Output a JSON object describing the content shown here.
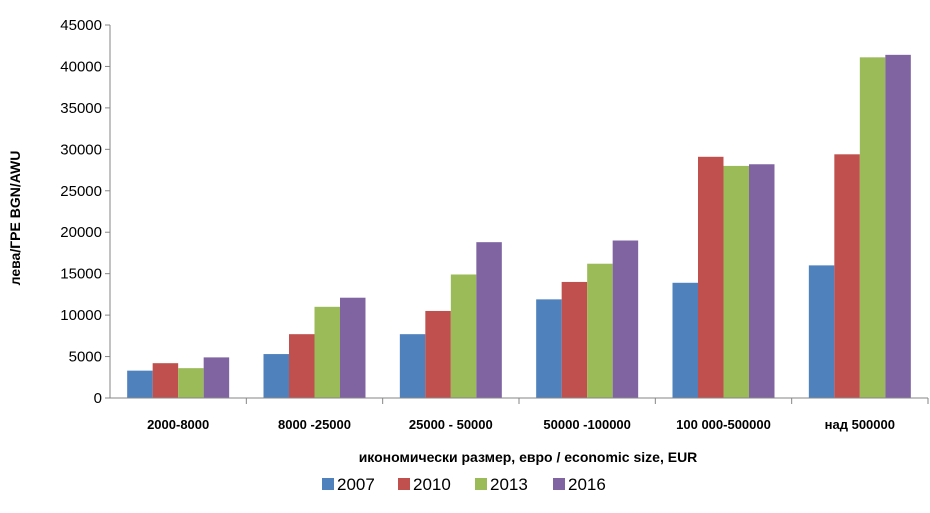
{
  "chart_data": {
    "type": "bar",
    "categories": [
      "2000-8000",
      "8000 -25000",
      "25000 - 50000",
      "50000 -100000",
      "100 000-500000",
      "над 500000"
    ],
    "series": [
      {
        "name": "2007",
        "color": "#4F81BD",
        "values": [
          3300,
          5300,
          7700,
          11900,
          13900,
          16000
        ]
      },
      {
        "name": "2010",
        "color": "#C0504D",
        "values": [
          4200,
          7700,
          10500,
          14000,
          29100,
          29400
        ]
      },
      {
        "name": "2013",
        "color": "#9BBB59",
        "values": [
          3600,
          11000,
          14900,
          16200,
          28000,
          41100
        ]
      },
      {
        "name": "2016",
        "color": "#8064A2",
        "values": [
          4900,
          12100,
          18800,
          19000,
          28200,
          41400
        ]
      }
    ],
    "ylim": [
      0,
      45000
    ],
    "yticks": [
      0,
      5000,
      10000,
      15000,
      20000,
      25000,
      30000,
      35000,
      40000,
      45000
    ],
    "xlabel": "икономически размер, евро / economic size, EUR",
    "ylabel": "лева/ГРЕ  BGN/AWU",
    "grid": false,
    "legend_position": "bottom"
  }
}
